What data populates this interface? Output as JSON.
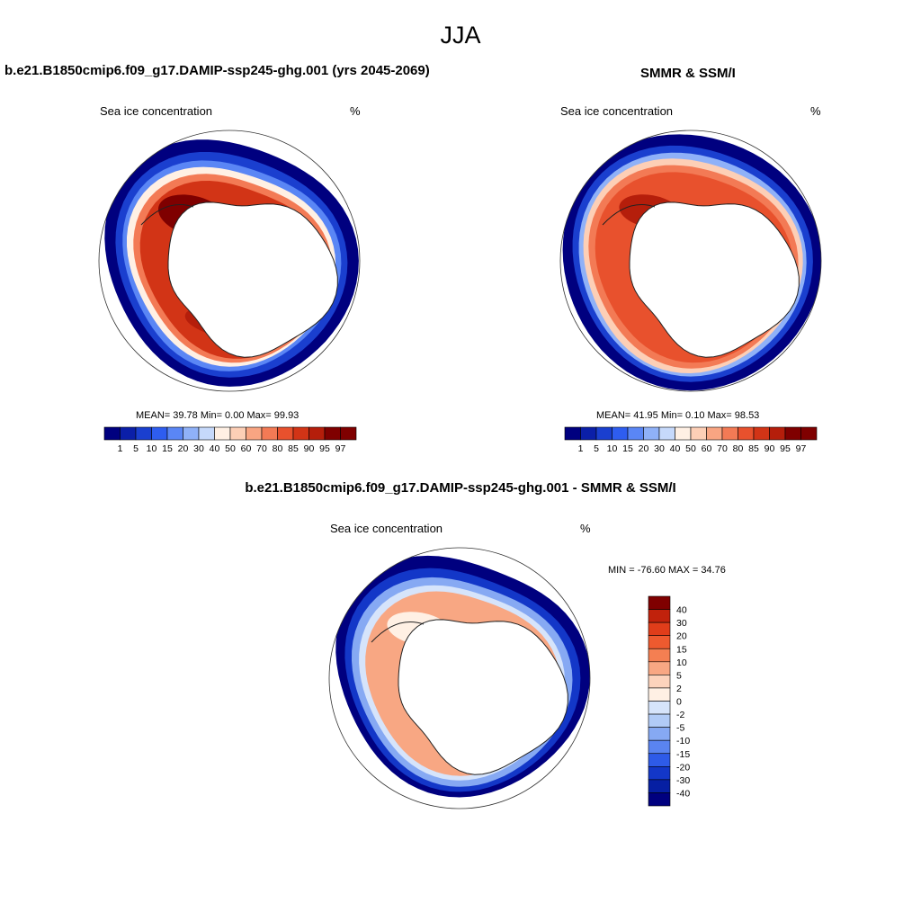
{
  "figure_title": "JJA",
  "panels": {
    "model": {
      "title": "b.e21.B1850cmip6.f09_g17.DAMIP-ssp245-ghg.001 (yrs 2045-2069)",
      "left_label": "Sea ice concentration",
      "right_label": "%",
      "stats": "MEAN=  39.78  Min=    0.00  Max=  99.93"
    },
    "obs": {
      "title": "SMMR & SSM/I",
      "left_label": "Sea ice concentration",
      "right_label": "%",
      "stats": "MEAN=  41.95  Min=    0.10  Max=  98.53"
    },
    "diff": {
      "title": "b.e21.B1850cmip6.f09_g17.DAMIP-ssp245-ghg.001 - SMMR & SSM/I",
      "left_label": "Sea ice concentration",
      "right_label": "%",
      "stats": "MIN = -76.60 MAX =  34.76"
    }
  },
  "colors": {
    "conc_scale": [
      "#00007f",
      "#0b1fa8",
      "#1a3fcf",
      "#2e5df0",
      "#5a86f5",
      "#8fb1f8",
      "#c6d9fb",
      "#fff0e4",
      "#fdcfb6",
      "#f9a582",
      "#f37a55",
      "#e8512d",
      "#d23416",
      "#b51e0b",
      "#7f0000"
    ],
    "diff_scale": [
      "#7f0000",
      "#c1220c",
      "#e03d1a",
      "#ee5a2f",
      "#f47f52",
      "#f8a783",
      "#fcd3bc",
      "#fff0e4",
      "#d6e4fb",
      "#b1cbf7",
      "#86a9f3",
      "#5a84f0",
      "#2e5be8",
      "#1337c8",
      "#061fa3",
      "#00007f"
    ],
    "land": "#ffffff",
    "coast": "#222222"
  },
  "chart_data": [
    {
      "type": "heatmap",
      "projection": "south polar stereographic",
      "title": "b.e21.B1850cmip6.f09_g17.DAMIP-ssp245-ghg.001 (yrs 2045-2069)",
      "variable": "Sea ice concentration",
      "units": "%",
      "levels": [
        1,
        5,
        10,
        15,
        20,
        30,
        40,
        50,
        60,
        70,
        80,
        85,
        90,
        95,
        97
      ],
      "level_labels": [
        "1",
        "5",
        "10",
        "15",
        "20",
        "30",
        "40",
        "50",
        "60",
        "70",
        "80",
        "85",
        "90",
        "95",
        "97"
      ],
      "stats": {
        "mean": 39.78,
        "min": 0.0,
        "max": 99.93
      }
    },
    {
      "type": "heatmap",
      "projection": "south polar stereographic",
      "title": "SMMR & SSM/I",
      "variable": "Sea ice concentration",
      "units": "%",
      "levels": [
        1,
        5,
        10,
        15,
        20,
        30,
        40,
        50,
        60,
        70,
        80,
        85,
        90,
        95,
        97
      ],
      "level_labels": [
        "1",
        "5",
        "10",
        "15",
        "20",
        "30",
        "40",
        "50",
        "60",
        "70",
        "80",
        "85",
        "90",
        "95",
        "97"
      ],
      "stats": {
        "mean": 41.95,
        "min": 0.1,
        "max": 98.53
      }
    },
    {
      "type": "heatmap",
      "projection": "south polar stereographic",
      "title": "b.e21.B1850cmip6.f09_g17.DAMIP-ssp245-ghg.001 - SMMR & SSM/I",
      "variable": "Sea ice concentration",
      "units": "%",
      "levels": [
        40,
        30,
        20,
        15,
        10,
        5,
        2,
        0,
        -2,
        -5,
        -10,
        -15,
        -20,
        -30,
        -40
      ],
      "level_labels": [
        "40",
        "30",
        "20",
        "15",
        "10",
        "5",
        "2",
        "0",
        "-2",
        "-5",
        "-10",
        "-15",
        "-20",
        "-30",
        "-40"
      ],
      "stats": {
        "min": -76.6,
        "max": 34.76
      }
    }
  ]
}
